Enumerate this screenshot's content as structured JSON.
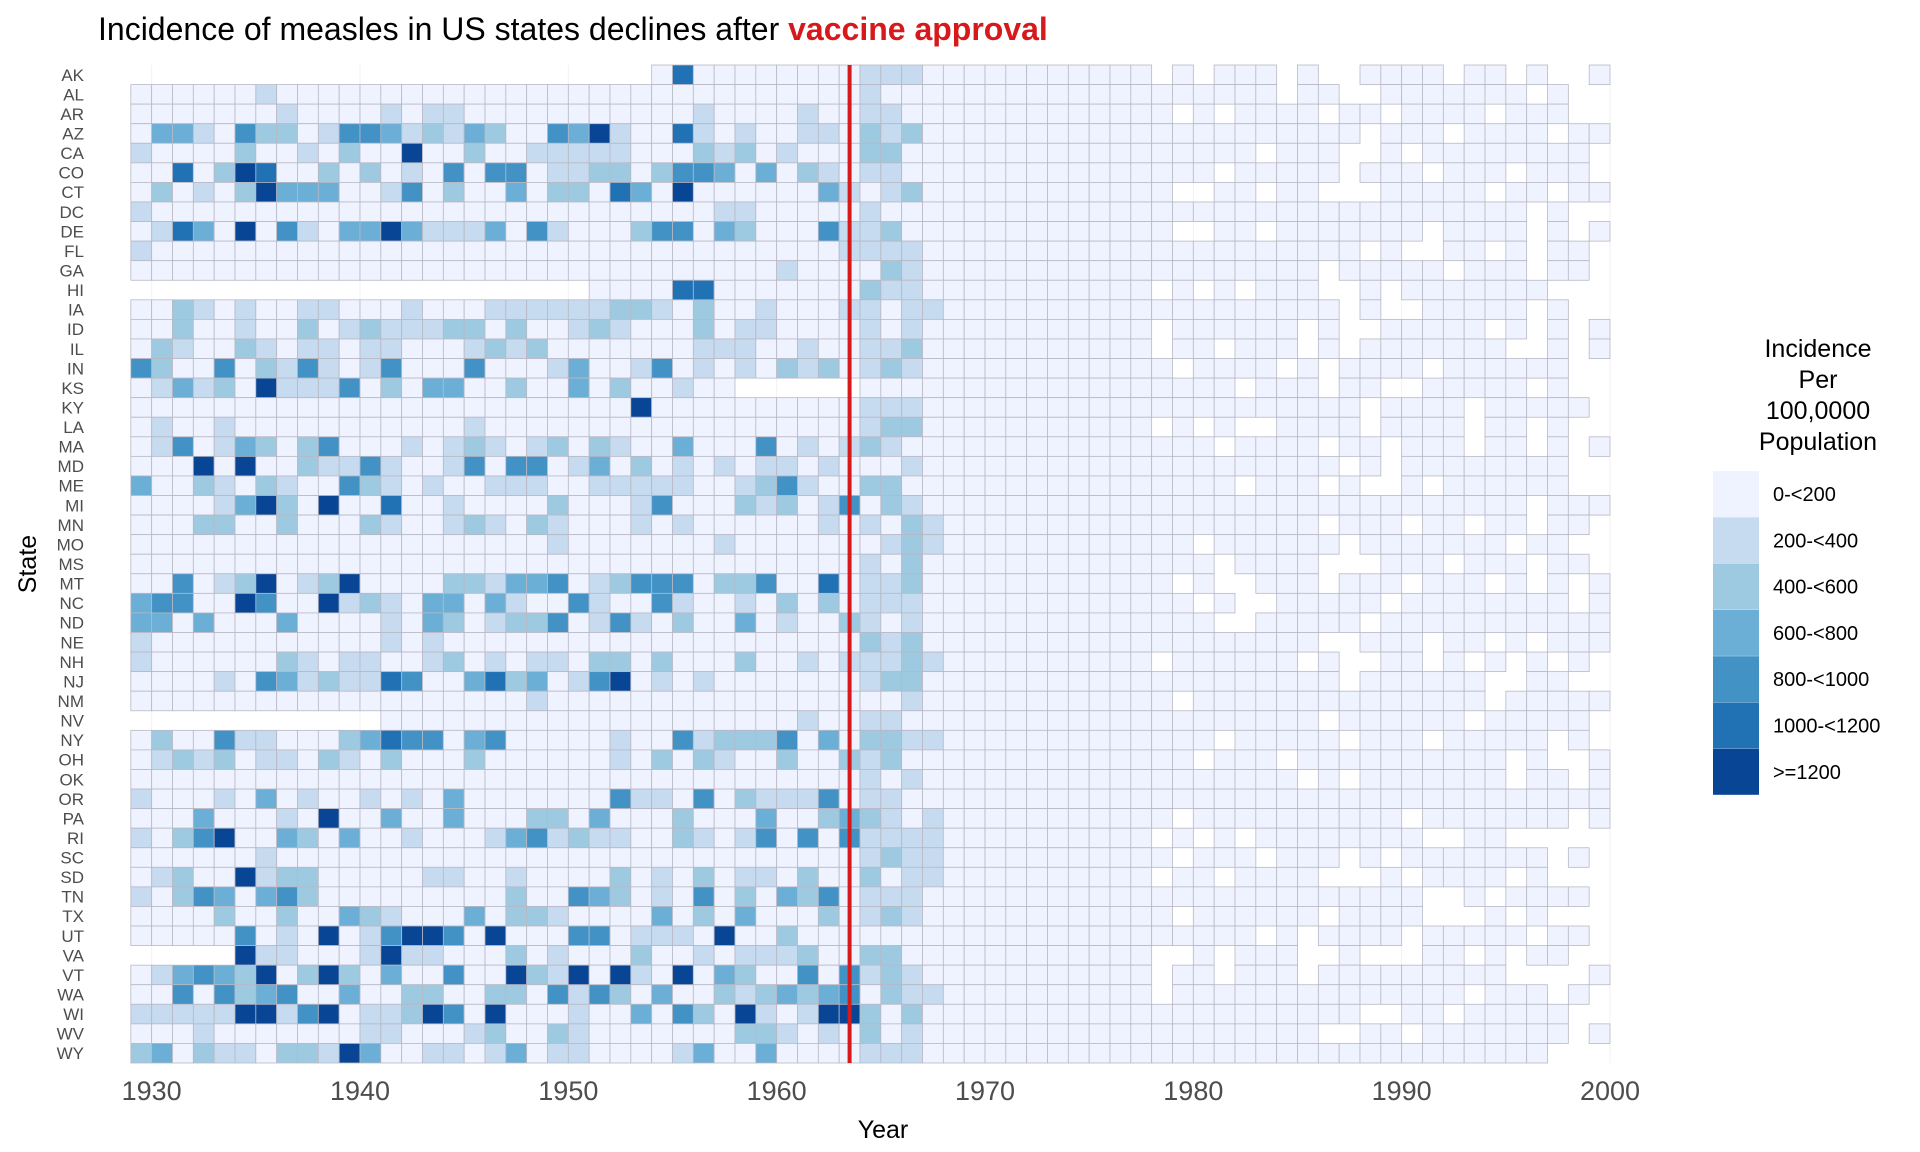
{
  "chart_data": {
    "type": "heatmap",
    "title_prefix": "Incidence of measles in US states declines after ",
    "title_highlight": "vaccine approval",
    "highlight_color": "#d7191c",
    "xlabel": "Year",
    "ylabel": "State",
    "xlim": [
      1928,
      2000
    ],
    "x_ticks": [
      1930,
      1940,
      1950,
      1960,
      1970,
      1980,
      1990,
      2000
    ],
    "vline_x": 1963,
    "vline_color": "#d7191c",
    "states": [
      "AK",
      "AL",
      "AR",
      "AZ",
      "CA",
      "CO",
      "CT",
      "DC",
      "DE",
      "FL",
      "GA",
      "HI",
      "IA",
      "ID",
      "IL",
      "IN",
      "KS",
      "KY",
      "LA",
      "MA",
      "MD",
      "ME",
      "MI",
      "MN",
      "MO",
      "MS",
      "MT",
      "NC",
      "ND",
      "NE",
      "NH",
      "NJ",
      "NM",
      "NV",
      "NY",
      "OH",
      "OK",
      "OR",
      "PA",
      "RI",
      "SC",
      "SD",
      "TN",
      "TX",
      "UT",
      "VA",
      "VT",
      "WA",
      "WI",
      "WV",
      "WY"
    ],
    "legend": {
      "title_lines": [
        "Incidence",
        "Per",
        "100,0000",
        "Population"
      ],
      "placement": "right",
      "classes": [
        {
          "label": "0-<200",
          "color": "#eff3ff"
        },
        {
          "label": "200-<400",
          "color": "#c6dbef"
        },
        {
          "label": "400-<600",
          "color": "#9ecae1"
        },
        {
          "label": "600-<800",
          "color": "#6baed6"
        },
        {
          "label": "800-<1000",
          "color": "#4292c6"
        },
        {
          "label": "1000-<1200",
          "color": "#2171b5"
        },
        {
          "label": ">=1200",
          "color": "#084594"
        }
      ]
    },
    "grid_color": "#b8b8c4",
    "notable_cells": [
      {
        "state": "AK",
        "year": 1955,
        "class": 5
      },
      {
        "state": "AZ",
        "year": 1951,
        "class": 6
      },
      {
        "state": "AZ",
        "year": 1955,
        "class": 5
      },
      {
        "state": "CA",
        "year": 1942,
        "class": 6
      },
      {
        "state": "CO",
        "year": 1934,
        "class": 6
      },
      {
        "state": "CO",
        "year": 1935,
        "class": 5
      },
      {
        "state": "CO",
        "year": 1931,
        "class": 5
      },
      {
        "state": "CT",
        "year": 1935,
        "class": 6
      },
      {
        "state": "CT",
        "year": 1955,
        "class": 6
      },
      {
        "state": "CT",
        "year": 1952,
        "class": 5
      },
      {
        "state": "DE",
        "year": 1931,
        "class": 5
      },
      {
        "state": "DE",
        "year": 1934,
        "class": 6
      },
      {
        "state": "DE",
        "year": 1941,
        "class": 6
      },
      {
        "state": "HI",
        "year": 1955,
        "class": 5
      },
      {
        "state": "HI",
        "year": 1956,
        "class": 5
      },
      {
        "state": "KS",
        "year": 1935,
        "class": 6
      },
      {
        "state": "KY",
        "year": 1953,
        "class": 6
      },
      {
        "state": "MD",
        "year": 1932,
        "class": 6
      },
      {
        "state": "MD",
        "year": 1934,
        "class": 6
      },
      {
        "state": "MI",
        "year": 1935,
        "class": 6
      },
      {
        "state": "MI",
        "year": 1938,
        "class": 6
      },
      {
        "state": "MI",
        "year": 1941,
        "class": 5
      },
      {
        "state": "MT",
        "year": 1939,
        "class": 6
      },
      {
        "state": "MT",
        "year": 1935,
        "class": 6
      },
      {
        "state": "MT",
        "year": 1962,
        "class": 5
      },
      {
        "state": "NC",
        "year": 1934,
        "class": 6
      },
      {
        "state": "NC",
        "year": 1938,
        "class": 6
      },
      {
        "state": "NJ",
        "year": 1952,
        "class": 6
      },
      {
        "state": "NJ",
        "year": 1946,
        "class": 5
      },
      {
        "state": "NJ",
        "year": 1941,
        "class": 5
      },
      {
        "state": "NY",
        "year": 1941,
        "class": 5
      },
      {
        "state": "PA",
        "year": 1938,
        "class": 6
      },
      {
        "state": "RI",
        "year": 1933,
        "class": 6
      },
      {
        "state": "SD",
        "year": 1934,
        "class": 6
      },
      {
        "state": "UT",
        "year": 1938,
        "class": 6
      },
      {
        "state": "UT",
        "year": 1942,
        "class": 6
      },
      {
        "state": "UT",
        "year": 1943,
        "class": 6
      },
      {
        "state": "UT",
        "year": 1946,
        "class": 6
      },
      {
        "state": "UT",
        "year": 1957,
        "class": 6
      },
      {
        "state": "VA",
        "year": 1934,
        "class": 6
      },
      {
        "state": "VA",
        "year": 1941,
        "class": 6
      },
      {
        "state": "VT",
        "year": 1935,
        "class": 6
      },
      {
        "state": "VT",
        "year": 1938,
        "class": 6
      },
      {
        "state": "VT",
        "year": 1947,
        "class": 6
      },
      {
        "state": "VT",
        "year": 1950,
        "class": 6
      },
      {
        "state": "VT",
        "year": 1952,
        "class": 6
      },
      {
        "state": "VT",
        "year": 1955,
        "class": 6
      },
      {
        "state": "WI",
        "year": 1934,
        "class": 6
      },
      {
        "state": "WI",
        "year": 1935,
        "class": 6
      },
      {
        "state": "WI",
        "year": 1938,
        "class": 6
      },
      {
        "state": "WI",
        "year": 1943,
        "class": 6
      },
      {
        "state": "WI",
        "year": 1946,
        "class": 6
      },
      {
        "state": "WI",
        "year": 1958,
        "class": 6
      },
      {
        "state": "WI",
        "year": 1962,
        "class": 6
      },
      {
        "state": "WI",
        "year": 1963,
        "class": 6
      },
      {
        "state": "WY",
        "year": 1939,
        "class": 6
      }
    ]
  }
}
